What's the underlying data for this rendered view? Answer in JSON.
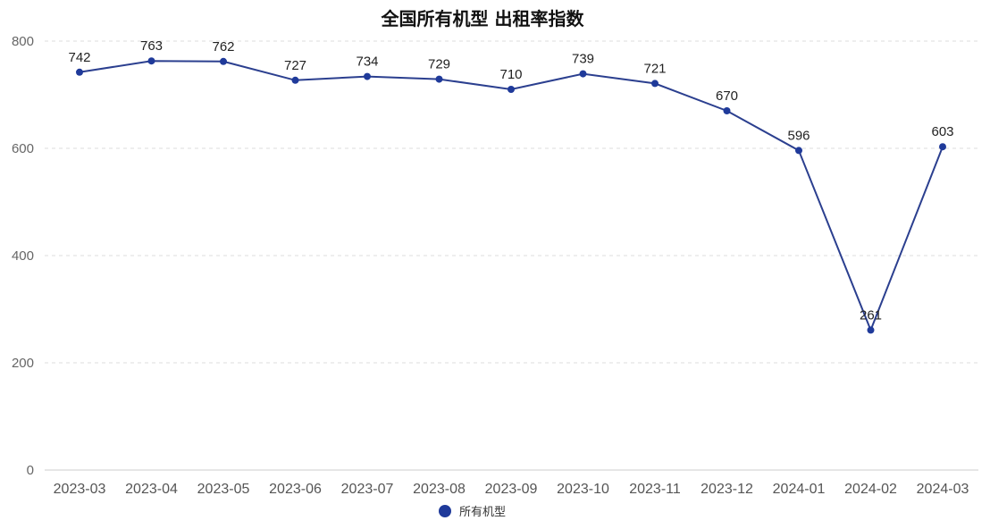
{
  "chart_data": {
    "type": "line",
    "title": "全国所有机型 出租率指数",
    "categories": [
      "2023-03",
      "2023-04",
      "2023-05",
      "2023-06",
      "2023-07",
      "2023-08",
      "2023-09",
      "2023-10",
      "2023-11",
      "2023-12",
      "2024-01",
      "2024-02",
      "2024-03"
    ],
    "series": [
      {
        "name": "所有机型",
        "values": [
          742,
          763,
          762,
          727,
          734,
          729,
          710,
          739,
          721,
          670,
          596,
          261,
          603
        ]
      }
    ],
    "ylim": [
      0,
      800
    ],
    "yticks": [
      0,
      200,
      400,
      600,
      800
    ],
    "grid": true,
    "legend_position": "bottom-center",
    "colors": {
      "series": "#2b3f8f",
      "marker": "#1f3a9a"
    }
  }
}
